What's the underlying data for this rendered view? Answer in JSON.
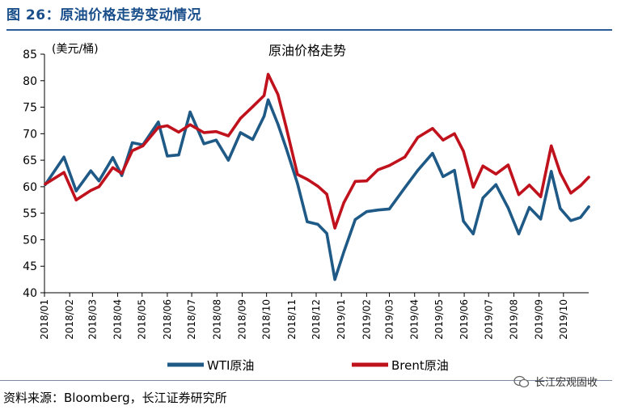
{
  "header": {
    "figure_title": "图 26：原油价格走势变动情况"
  },
  "footer": {
    "source": "资料来源：Bloomberg，长江证券研究所",
    "brand": "长江宏观固收"
  },
  "colors": {
    "wti": "#1f5a87",
    "brent": "#c0121d",
    "title": "#1a4f8b"
  },
  "chart_data": {
    "type": "line",
    "title": "原油价格走势",
    "unit_label": "(美元/桶)",
    "xlabel": "",
    "ylabel": "",
    "ylim": [
      40,
      85
    ],
    "yticks": [
      40,
      45,
      50,
      55,
      60,
      65,
      70,
      75,
      80,
      85
    ],
    "xlim": [
      "2018-01",
      "2019-11"
    ],
    "xticks": [
      "2018/01",
      "2018/02",
      "2018/03",
      "2018/04",
      "2018/05",
      "2018/06",
      "2018/07",
      "2018/08",
      "2018/09",
      "2018/10",
      "2018/11",
      "2018/12",
      "2019/01",
      "2019/02",
      "2019/03",
      "2019/04",
      "2019/05",
      "2019/06",
      "2019/07",
      "2019/08",
      "2019/09",
      "2019/10"
    ],
    "grid": false,
    "legend_position": "bottom",
    "series": [
      {
        "name": "WTI原油",
        "color": "#1f5a87",
        "x": [
          "2018-01-02",
          "2018-01-25",
          "2018-02-09",
          "2018-02-27",
          "2018-03-09",
          "2018-03-26",
          "2018-04-06",
          "2018-04-19",
          "2018-05-02",
          "2018-05-21",
          "2018-06-01",
          "2018-06-15",
          "2018-06-29",
          "2018-07-16",
          "2018-07-31",
          "2018-08-15",
          "2018-08-30",
          "2018-09-14",
          "2018-09-28",
          "2018-10-03",
          "2018-10-15",
          "2018-10-25",
          "2018-11-08",
          "2018-11-20",
          "2018-12-03",
          "2018-12-14",
          "2018-12-24",
          "2019-01-04",
          "2019-01-18",
          "2019-02-01",
          "2019-02-15",
          "2019-03-01",
          "2019-03-20",
          "2019-04-05",
          "2019-04-23",
          "2019-05-06",
          "2019-05-20",
          "2019-05-31",
          "2019-06-12",
          "2019-06-24",
          "2019-07-10",
          "2019-07-25",
          "2019-08-07",
          "2019-08-20",
          "2019-09-03",
          "2019-09-16",
          "2019-09-27",
          "2019-10-10",
          "2019-10-22",
          "2019-11-01"
        ],
        "values": [
          60.4,
          65.6,
          59.2,
          63.0,
          61.1,
          65.5,
          62.1,
          68.3,
          67.9,
          72.2,
          65.8,
          66.0,
          74.1,
          68.1,
          68.8,
          65.0,
          70.2,
          68.9,
          73.3,
          76.4,
          71.8,
          67.3,
          60.6,
          53.4,
          52.9,
          51.2,
          42.5,
          47.7,
          53.8,
          55.3,
          55.6,
          55.8,
          59.8,
          63.1,
          66.3,
          61.9,
          63.1,
          53.5,
          51.1,
          57.9,
          60.4,
          56.0,
          51.1,
          56.1,
          53.9,
          62.9,
          55.9,
          53.6,
          54.2,
          56.2
        ]
      },
      {
        "name": "Brent原油",
        "color": "#c0121d",
        "x": [
          "2018-01-02",
          "2018-01-25",
          "2018-02-09",
          "2018-02-27",
          "2018-03-09",
          "2018-03-26",
          "2018-04-06",
          "2018-04-19",
          "2018-05-02",
          "2018-05-21",
          "2018-06-01",
          "2018-06-15",
          "2018-06-29",
          "2018-07-16",
          "2018-07-31",
          "2018-08-15",
          "2018-08-30",
          "2018-09-14",
          "2018-09-28",
          "2018-10-03",
          "2018-10-15",
          "2018-10-25",
          "2018-11-08",
          "2018-11-20",
          "2018-12-03",
          "2018-12-14",
          "2018-12-24",
          "2019-01-04",
          "2019-01-18",
          "2019-02-01",
          "2019-02-15",
          "2019-03-01",
          "2019-03-20",
          "2019-04-05",
          "2019-04-23",
          "2019-05-06",
          "2019-05-20",
          "2019-05-31",
          "2019-06-12",
          "2019-06-24",
          "2019-07-10",
          "2019-07-25",
          "2019-08-07",
          "2019-08-20",
          "2019-09-03",
          "2019-09-16",
          "2019-09-27",
          "2019-10-10",
          "2019-10-22",
          "2019-11-01"
        ],
        "values": [
          60.5,
          62.7,
          57.5,
          59.3,
          60.0,
          63.6,
          62.5,
          66.8,
          67.7,
          71.2,
          71.5,
          70.3,
          71.7,
          70.2,
          70.4,
          69.6,
          72.9,
          75.1,
          77.2,
          81.2,
          77.4,
          71.3,
          62.3,
          61.4,
          60.1,
          58.6,
          52.2,
          57.0,
          61.0,
          61.1,
          63.2,
          64.0,
          65.6,
          69.3,
          71.0,
          68.8,
          70.0,
          66.7,
          59.9,
          63.9,
          62.4,
          64.1,
          58.5,
          60.3,
          58.1,
          67.7,
          62.6,
          58.8,
          60.2,
          61.8
        ]
      }
    ]
  }
}
